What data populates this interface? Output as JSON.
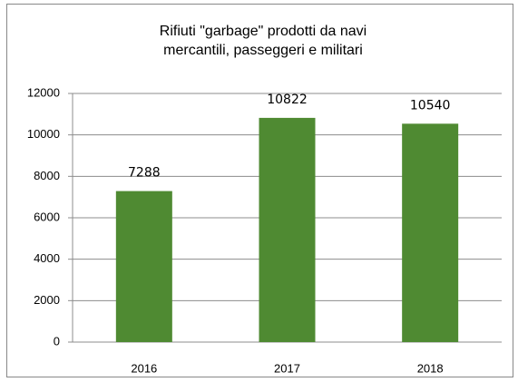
{
  "chart_data": {
    "type": "bar",
    "title": [
      "Rifiuti \"garbage\" prodotti da navi",
      "mercantili, passeggeri e militari"
    ],
    "categories": [
      "2016",
      "2017",
      "2018"
    ],
    "values": [
      7288,
      10822,
      10540
    ],
    "color": "#4f8a32",
    "ylim": [
      0,
      12000
    ],
    "yticks": [
      0,
      2000,
      4000,
      6000,
      8000,
      10000,
      12000
    ],
    "grid": true,
    "data_labels": true
  }
}
